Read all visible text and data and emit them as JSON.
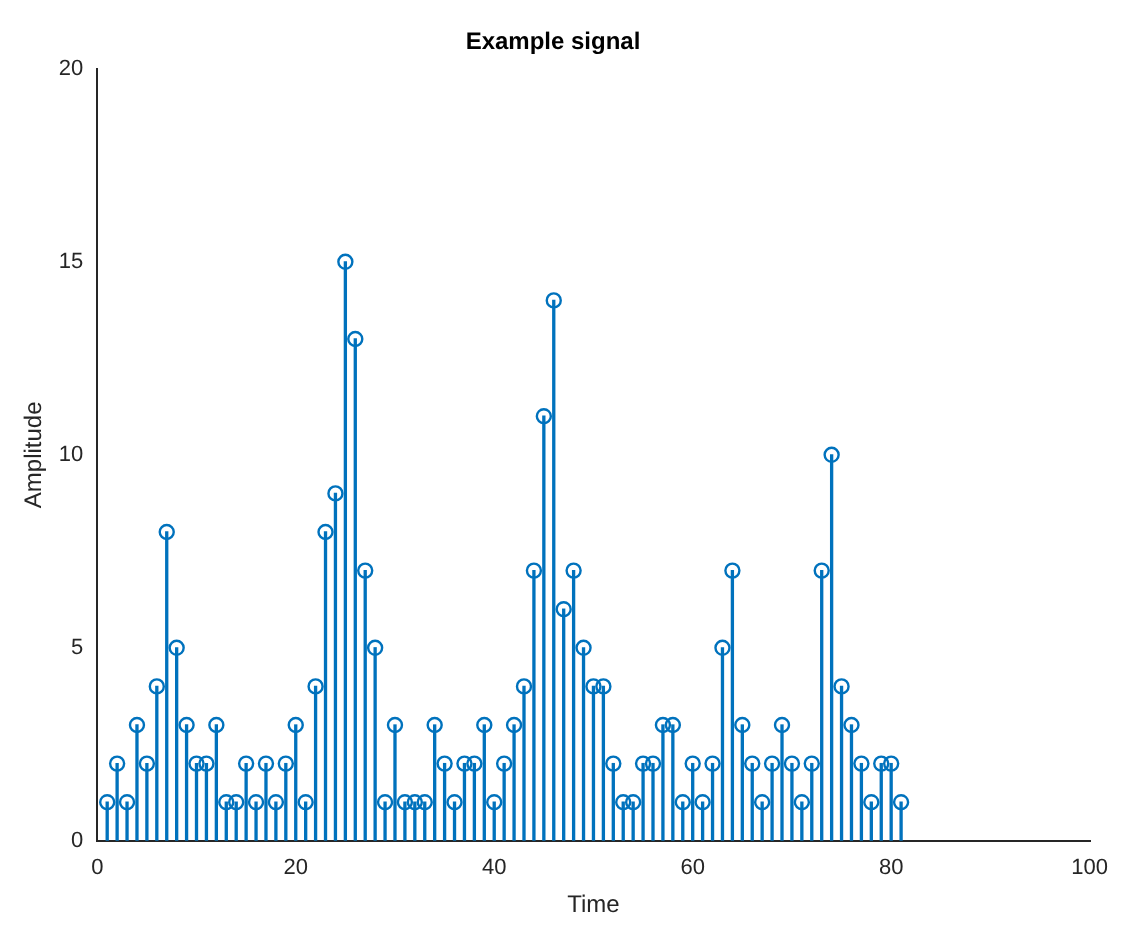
{
  "chart_data": {
    "type": "lollipop",
    "title": "Example signal",
    "xlabel": "Time",
    "ylabel": "Amplitude",
    "x": [
      1,
      2,
      3,
      4,
      5,
      6,
      7,
      8,
      9,
      10,
      11,
      12,
      13,
      14,
      15,
      16,
      17,
      18,
      19,
      20,
      21,
      22,
      23,
      24,
      25,
      26,
      27,
      28,
      29,
      30,
      31,
      32,
      33,
      34,
      35,
      36,
      37,
      38,
      39,
      40,
      41,
      42,
      43,
      44,
      45,
      46,
      47,
      48,
      49,
      50,
      51,
      52,
      53,
      54,
      55,
      56,
      57,
      58,
      59,
      60,
      61,
      62,
      63,
      64,
      65,
      66,
      67,
      68,
      69,
      70,
      71,
      72,
      73,
      74,
      75,
      76,
      77,
      78,
      79,
      80,
      81
    ],
    "values": [
      1,
      2,
      1,
      3,
      2,
      4,
      8,
      5,
      3,
      2,
      2,
      3,
      1,
      1,
      2,
      1,
      2,
      1,
      2,
      3,
      1,
      4,
      8,
      9,
      15,
      13,
      7,
      5,
      1,
      3,
      1,
      1,
      1,
      3,
      2,
      1,
      2,
      2,
      3,
      1,
      2,
      3,
      4,
      7,
      11,
      14,
      6,
      7,
      5,
      4,
      4,
      2,
      1,
      1,
      2,
      2,
      3,
      3,
      1,
      2,
      1,
      2,
      5,
      7,
      3,
      2,
      1,
      2,
      3,
      2,
      1,
      2,
      7,
      10,
      4,
      3,
      2,
      1,
      2,
      2,
      1
    ],
    "color": "#0072bd",
    "marker": "circle",
    "grid": false,
    "xlim": [
      0,
      100
    ],
    "xticks": [
      0,
      20,
      40,
      60,
      80,
      100
    ],
    "ylim": [
      0,
      20
    ],
    "yticks": [
      0,
      5,
      10,
      15,
      20
    ]
  }
}
